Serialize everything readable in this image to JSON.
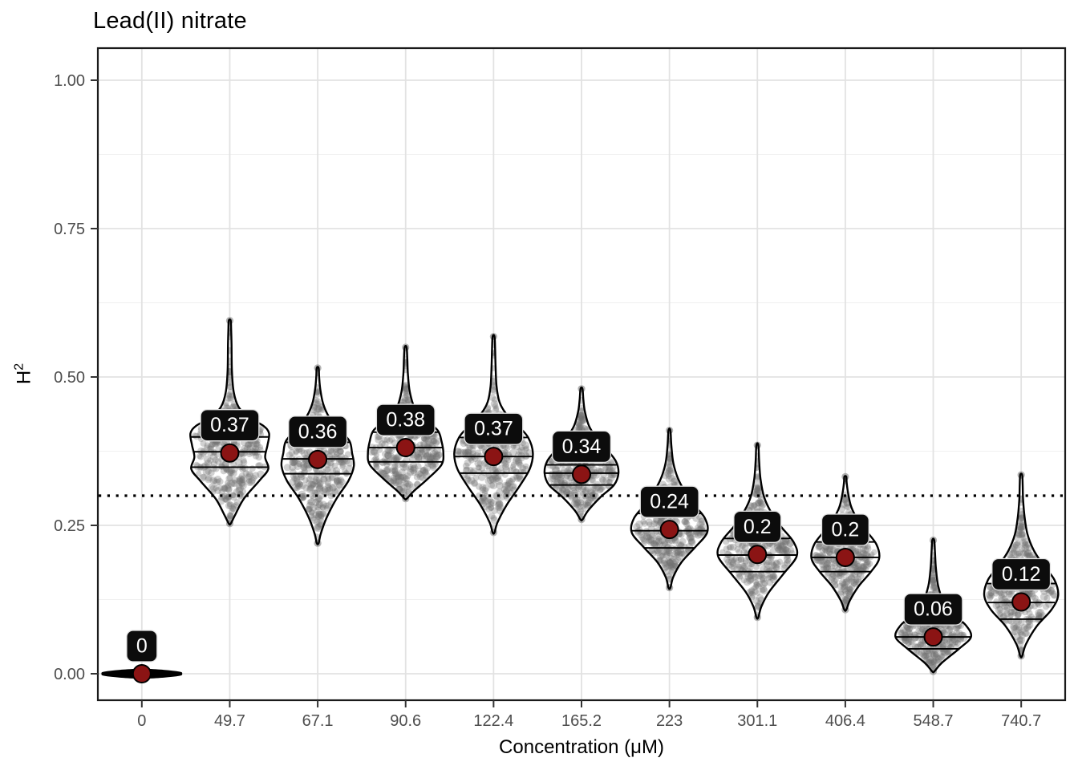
{
  "title": "Lead(II) nitrate",
  "axes": {
    "x_label": "Concentration (μM)",
    "y_label_base": "H",
    "y_label_exp": "2",
    "y_ticks": [
      "0.00",
      "0.25",
      "0.50",
      "0.75",
      "1.00"
    ],
    "y_tick_values": [
      0,
      0.25,
      0.5,
      0.75,
      1.0
    ],
    "y_minor_values": [
      0.125,
      0.375,
      0.625,
      0.875
    ],
    "ylim": [
      -0.045,
      1.054
    ]
  },
  "colors": {
    "mean_dot": "#8B1414",
    "label_bg": "#0c0c0c",
    "label_text": "#ffffff",
    "label_border": "#e3e3e3",
    "violin_outline": "#000000",
    "violin_fill": "#ffffff",
    "jitter": "#6f6f6f",
    "tip_dot": "#909090",
    "grid_major": "#e2e2e2",
    "grid_minor": "#f0f0f0",
    "panel_border": "#1a1a1a",
    "tick_mark": "#333333",
    "tick_label": "#4d4d4d",
    "reference_line": "#000000"
  },
  "chart_data": {
    "type": "violin",
    "title": "Lead(II) nitrate",
    "xlabel": "Concentration (μM)",
    "ylabel": "H^2",
    "ylim": [
      0,
      1.0
    ],
    "grid": true,
    "reference_line_y": 0.3,
    "reference_line_style": "dotted",
    "categories": [
      "0",
      "49.7",
      "67.1",
      "90.6",
      "122.4",
      "165.2",
      "223",
      "301.1",
      "406.4",
      "548.7",
      "740.7"
    ],
    "means": [
      0,
      0.37,
      0.36,
      0.38,
      0.37,
      0.34,
      0.24,
      0.2,
      0.2,
      0.06,
      0.12
    ],
    "mean_labels": [
      "0",
      "0.37",
      "0.36",
      "0.38",
      "0.37",
      "0.34",
      "0.24",
      "0.2",
      "0.2",
      "0.06",
      "0.12"
    ],
    "violins": [
      {
        "category": "0",
        "label": "0",
        "mean": 0,
        "min": -0.006,
        "max": 0.006,
        "flat": true,
        "scale": 1.0,
        "n_points": 300,
        "quantiles": [],
        "profile": [
          [
            -0.007,
            0.05
          ],
          [
            -0.005,
            0.55
          ],
          [
            -0.002,
            0.95
          ],
          [
            0,
            1
          ],
          [
            0.002,
            0.95
          ],
          [
            0.005,
            0.55
          ],
          [
            0.007,
            0.05
          ]
        ]
      },
      {
        "category": "49.7",
        "label": "0.37",
        "mean": 0.372,
        "min": 0.253,
        "max": 0.595,
        "flat": false,
        "scale": 1.0,
        "n_points": 340,
        "quantiles": [
          0.348,
          0.374,
          0.399
        ],
        "profile": [
          [
            0.253,
            0.02
          ],
          [
            0.268,
            0.14
          ],
          [
            0.295,
            0.36
          ],
          [
            0.325,
            0.75
          ],
          [
            0.345,
            0.98
          ],
          [
            0.365,
            0.9
          ],
          [
            0.385,
            0.96
          ],
          [
            0.405,
            1.0
          ],
          [
            0.418,
            0.85
          ],
          [
            0.432,
            0.48
          ],
          [
            0.45,
            0.22
          ],
          [
            0.475,
            0.1
          ],
          [
            0.51,
            0.055
          ],
          [
            0.555,
            0.045
          ],
          [
            0.58,
            0.035
          ],
          [
            0.595,
            0.015
          ]
        ]
      },
      {
        "category": "67.1",
        "label": "0.36",
        "mean": 0.361,
        "min": 0.22,
        "max": 0.515,
        "flat": false,
        "scale": 0.92,
        "n_points": 340,
        "quantiles": [
          0.337,
          0.362,
          0.39
        ],
        "profile": [
          [
            0.22,
            0.015
          ],
          [
            0.235,
            0.08
          ],
          [
            0.262,
            0.24
          ],
          [
            0.295,
            0.52
          ],
          [
            0.325,
            0.85
          ],
          [
            0.35,
            1.0
          ],
          [
            0.372,
            0.95
          ],
          [
            0.392,
            0.88
          ],
          [
            0.412,
            0.6
          ],
          [
            0.432,
            0.32
          ],
          [
            0.455,
            0.15
          ],
          [
            0.48,
            0.07
          ],
          [
            0.5,
            0.04
          ],
          [
            0.515,
            0.015
          ]
        ]
      },
      {
        "category": "90.6",
        "label": "0.38",
        "mean": 0.381,
        "min": 0.295,
        "max": 0.55,
        "flat": false,
        "scale": 0.96,
        "n_points": 340,
        "quantiles": [
          0.357,
          0.381,
          0.407
        ],
        "profile": [
          [
            0.295,
            0.03
          ],
          [
            0.308,
            0.22
          ],
          [
            0.328,
            0.58
          ],
          [
            0.352,
            0.95
          ],
          [
            0.372,
            1.0
          ],
          [
            0.392,
            0.95
          ],
          [
            0.41,
            0.85
          ],
          [
            0.428,
            0.52
          ],
          [
            0.448,
            0.24
          ],
          [
            0.475,
            0.11
          ],
          [
            0.505,
            0.06
          ],
          [
            0.53,
            0.045
          ],
          [
            0.55,
            0.015
          ]
        ]
      },
      {
        "category": "122.4",
        "label": "0.37",
        "mean": 0.366,
        "min": 0.238,
        "max": 0.568,
        "flat": false,
        "scale": 1.0,
        "n_points": 340,
        "quantiles": [
          0.338,
          0.366,
          0.398
        ],
        "profile": [
          [
            0.238,
            0.015
          ],
          [
            0.255,
            0.1
          ],
          [
            0.285,
            0.34
          ],
          [
            0.315,
            0.65
          ],
          [
            0.345,
            0.92
          ],
          [
            0.372,
            1.0
          ],
          [
            0.398,
            0.88
          ],
          [
            0.418,
            0.62
          ],
          [
            0.438,
            0.32
          ],
          [
            0.458,
            0.15
          ],
          [
            0.485,
            0.075
          ],
          [
            0.52,
            0.05
          ],
          [
            0.545,
            0.04
          ],
          [
            0.568,
            0.015
          ]
        ]
      },
      {
        "category": "165.2",
        "label": "0.34",
        "mean": 0.336,
        "min": 0.26,
        "max": 0.48,
        "flat": false,
        "scale": 0.94,
        "n_points": 340,
        "quantiles": [
          0.318,
          0.338,
          0.352
        ],
        "profile": [
          [
            0.26,
            0.03
          ],
          [
            0.275,
            0.18
          ],
          [
            0.298,
            0.52
          ],
          [
            0.318,
            0.88
          ],
          [
            0.338,
            1.0
          ],
          [
            0.358,
            0.93
          ],
          [
            0.378,
            0.68
          ],
          [
            0.398,
            0.4
          ],
          [
            0.418,
            0.2
          ],
          [
            0.442,
            0.09
          ],
          [
            0.462,
            0.05
          ],
          [
            0.48,
            0.015
          ]
        ]
      },
      {
        "category": "223",
        "label": "0.24",
        "mean": 0.243,
        "min": 0.145,
        "max": 0.41,
        "flat": false,
        "scale": 0.96,
        "n_points": 340,
        "quantiles": [
          0.212,
          0.241,
          0.27
        ],
        "profile": [
          [
            0.145,
            0.02
          ],
          [
            0.163,
            0.1
          ],
          [
            0.188,
            0.32
          ],
          [
            0.213,
            0.68
          ],
          [
            0.238,
            1.0
          ],
          [
            0.262,
            0.94
          ],
          [
            0.285,
            0.65
          ],
          [
            0.308,
            0.4
          ],
          [
            0.33,
            0.22
          ],
          [
            0.356,
            0.1
          ],
          [
            0.385,
            0.05
          ],
          [
            0.41,
            0.015
          ]
        ]
      },
      {
        "category": "301.1",
        "label": "0.2",
        "mean": 0.201,
        "min": 0.095,
        "max": 0.385,
        "flat": false,
        "scale": 1.0,
        "n_points": 340,
        "quantiles": [
          0.172,
          0.2,
          0.228
        ],
        "profile": [
          [
            0.095,
            0.02
          ],
          [
            0.113,
            0.1
          ],
          [
            0.138,
            0.3
          ],
          [
            0.168,
            0.66
          ],
          [
            0.198,
            1.0
          ],
          [
            0.222,
            0.92
          ],
          [
            0.248,
            0.6
          ],
          [
            0.272,
            0.35
          ],
          [
            0.298,
            0.17
          ],
          [
            0.328,
            0.08
          ],
          [
            0.358,
            0.045
          ],
          [
            0.385,
            0.015
          ]
        ]
      },
      {
        "category": "406.4",
        "label": "0.2",
        "mean": 0.196,
        "min": 0.108,
        "max": 0.332,
        "flat": false,
        "scale": 0.86,
        "n_points": 330,
        "quantiles": [
          0.172,
          0.196,
          0.222
        ],
        "profile": [
          [
            0.108,
            0.03
          ],
          [
            0.124,
            0.14
          ],
          [
            0.148,
            0.4
          ],
          [
            0.172,
            0.76
          ],
          [
            0.194,
            1.0
          ],
          [
            0.218,
            0.92
          ],
          [
            0.242,
            0.6
          ],
          [
            0.262,
            0.34
          ],
          [
            0.282,
            0.17
          ],
          [
            0.305,
            0.08
          ],
          [
            0.322,
            0.04
          ],
          [
            0.332,
            0.015
          ]
        ]
      },
      {
        "category": "548.7",
        "label": "0.06",
        "mean": 0.062,
        "min": 0.004,
        "max": 0.225,
        "flat": false,
        "scale": 0.96,
        "n_points": 330,
        "quantiles": [
          0.042,
          0.062,
          0.086
        ],
        "profile": [
          [
            0.004,
            0.03
          ],
          [
            0.018,
            0.22
          ],
          [
            0.042,
            0.68
          ],
          [
            0.062,
            1.0
          ],
          [
            0.082,
            0.86
          ],
          [
            0.102,
            0.5
          ],
          [
            0.122,
            0.27
          ],
          [
            0.148,
            0.13
          ],
          [
            0.178,
            0.07
          ],
          [
            0.205,
            0.045
          ],
          [
            0.225,
            0.015
          ]
        ]
      },
      {
        "category": "740.7",
        "label": "0.12",
        "mean": 0.121,
        "min": 0.03,
        "max": 0.335,
        "flat": false,
        "scale": 0.94,
        "n_points": 330,
        "quantiles": [
          0.092,
          0.12,
          0.152
        ],
        "profile": [
          [
            0.03,
            0.02
          ],
          [
            0.05,
            0.13
          ],
          [
            0.08,
            0.42
          ],
          [
            0.108,
            0.82
          ],
          [
            0.132,
            1.0
          ],
          [
            0.158,
            0.9
          ],
          [
            0.183,
            0.6
          ],
          [
            0.208,
            0.34
          ],
          [
            0.235,
            0.17
          ],
          [
            0.265,
            0.09
          ],
          [
            0.295,
            0.05
          ],
          [
            0.318,
            0.04
          ],
          [
            0.335,
            0.015
          ]
        ]
      }
    ]
  }
}
